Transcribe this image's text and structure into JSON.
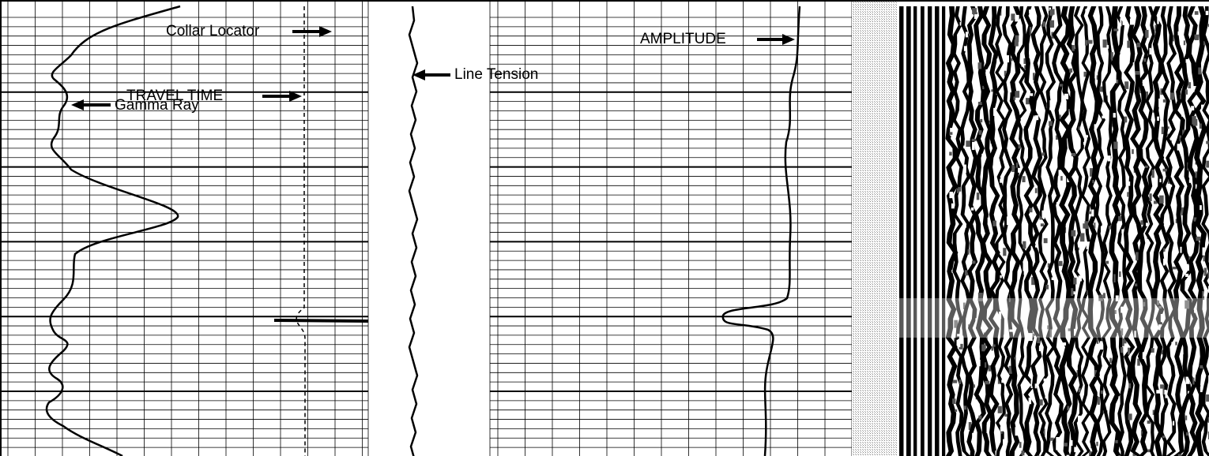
{
  "labels": {
    "collar_locator": "Collar Locator",
    "travel_time": "TRAVEL TIME",
    "gamma_ray": "Gamma Ray",
    "line_tension": "Line Tension",
    "amplitude": "AMPLITUDE"
  }
}
